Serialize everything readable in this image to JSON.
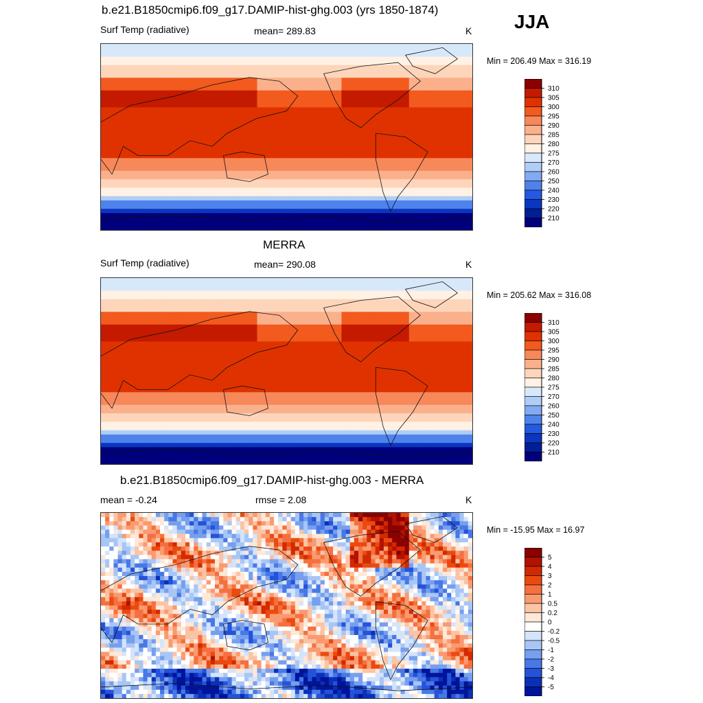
{
  "season": "JJA",
  "panels": [
    {
      "title": "b.e21.B1850cmip6.f09_g17.DAMIP-hist-ghg.003 (yrs 1850-1874)",
      "left_label": "Surf Temp (radiative)",
      "center_label": "mean= 289.83",
      "units": "K",
      "minmax": "Min = 206.49 Max = 316.19",
      "kind": "abs"
    },
    {
      "title": "MERRA",
      "left_label": "Surf Temp (radiative)",
      "center_label": "mean= 290.08",
      "units": "K",
      "minmax": "Min = 205.62 Max = 316.08",
      "kind": "abs"
    },
    {
      "title": "b.e21.B1850cmip6.f09_g17.DAMIP-hist-ghg.003 - MERRA",
      "left_label": "mean =  -0.24",
      "center_label": "rmse =   2.08",
      "units": "K",
      "minmax": "Min = -15.95 Max =  16.97",
      "kind": "diff"
    }
  ],
  "colorbars": {
    "abs": {
      "labels": [
        "310",
        "305",
        "300",
        "295",
        "290",
        "285",
        "280",
        "275",
        "270",
        "260",
        "250",
        "240",
        "230",
        "220",
        "210"
      ],
      "colors": [
        "#8b0000",
        "#c41a00",
        "#e03200",
        "#f25a1e",
        "#f7885a",
        "#fbb08c",
        "#fdd5ba",
        "#fff1e3",
        "#d8e8fb",
        "#b0cdf7",
        "#82aaf2",
        "#4f83ec",
        "#2459e0",
        "#0c36c0",
        "#001e96",
        "#00007d"
      ]
    },
    "diff": {
      "labels": [
        "5",
        "4",
        "3",
        "2",
        "1",
        "0.5",
        "0.2",
        "0",
        "-0.2",
        "-0.5",
        "-1",
        "-2",
        "-3",
        "-4",
        "-5"
      ],
      "colors": [
        "#8b0000",
        "#b21200",
        "#d22a00",
        "#ea4a10",
        "#f57040",
        "#fa9a70",
        "#fcc3a4",
        "#fee8d8",
        "#ffffff",
        "#d4e4fb",
        "#a8c6f5",
        "#779fee",
        "#4878e6",
        "#2552d8",
        "#0b30b8",
        "#00149a"
      ]
    }
  }
}
